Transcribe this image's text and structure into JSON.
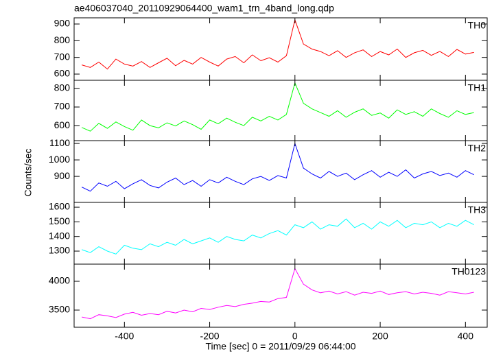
{
  "chart_data": [
    {
      "type": "line",
      "title": "ae406037040_20110929064400_wam1_trn_4band_long.qdp",
      "x": [
        -500,
        -480,
        -460,
        -440,
        -420,
        -400,
        -380,
        -360,
        -340,
        -320,
        -300,
        -280,
        -260,
        -240,
        -220,
        -200,
        -180,
        -160,
        -140,
        -120,
        -100,
        -80,
        -60,
        -40,
        -20,
        0,
        20,
        40,
        60,
        80,
        100,
        120,
        140,
        160,
        180,
        200,
        220,
        240,
        260,
        280,
        300,
        320,
        340,
        360,
        380,
        400,
        420
      ],
      "series": [
        {
          "name": "TH0",
          "color": "#ff0000",
          "values": [
            655,
            640,
            672,
            630,
            690,
            660,
            648,
            675,
            640,
            668,
            695,
            650,
            682,
            660,
            700,
            672,
            648,
            690,
            705,
            668,
            715,
            680,
            698,
            672,
            710,
            925,
            780,
            750,
            735,
            710,
            740,
            700,
            728,
            745,
            705,
            735,
            715,
            750,
            700,
            728,
            742,
            712,
            736,
            705,
            748,
            720,
            730
          ]
        }
      ],
      "xlim": [
        -518,
        451
      ],
      "xticks": [
        -400,
        -200,
        0,
        200,
        400
      ],
      "ylim": [
        563,
        937
      ],
      "yticks": [
        600,
        700,
        800,
        900
      ]
    },
    {
      "type": "line",
      "x": [
        -500,
        -480,
        -460,
        -440,
        -420,
        -400,
        -380,
        -360,
        -340,
        -320,
        -300,
        -280,
        -260,
        -240,
        -220,
        -200,
        -180,
        -160,
        -140,
        -120,
        -100,
        -80,
        -60,
        -40,
        -20,
        0,
        20,
        40,
        60,
        80,
        100,
        120,
        140,
        160,
        180,
        200,
        220,
        240,
        260,
        280,
        300,
        320,
        340,
        360,
        380,
        400,
        420
      ],
      "series": [
        {
          "name": "TH1",
          "color": "#00ff00",
          "values": [
            590,
            570,
            612,
            585,
            620,
            595,
            575,
            630,
            600,
            588,
            615,
            598,
            625,
            605,
            580,
            630,
            610,
            640,
            618,
            600,
            645,
            625,
            650,
            630,
            660,
            830,
            720,
            690,
            670,
            650,
            680,
            645,
            672,
            690,
            655,
            668,
            640,
            685,
            660,
            675,
            650,
            690,
            665,
            645,
            680,
            660,
            670
          ]
        }
      ],
      "xlim": [
        -518,
        451
      ],
      "xticks": [
        -400,
        -200,
        0,
        200,
        400
      ],
      "ylim": [
        519,
        844
      ],
      "yticks": [
        600,
        700,
        800
      ]
    },
    {
      "type": "line",
      "y_label": "Counts/sec",
      "x": [
        -500,
        -480,
        -460,
        -440,
        -420,
        -400,
        -380,
        -360,
        -340,
        -320,
        -300,
        -280,
        -260,
        -240,
        -220,
        -200,
        -180,
        -160,
        -140,
        -120,
        -100,
        -80,
        -60,
        -40,
        -20,
        0,
        20,
        40,
        60,
        80,
        100,
        120,
        140,
        160,
        180,
        200,
        220,
        240,
        260,
        280,
        300,
        320,
        340,
        360,
        380,
        400,
        420
      ],
      "series": [
        {
          "name": "TH2",
          "color": "#0000ff",
          "values": [
            835,
            810,
            860,
            840,
            870,
            825,
            855,
            880,
            845,
            830,
            865,
            890,
            850,
            875,
            840,
            880,
            860,
            895,
            870,
            850,
            885,
            900,
            875,
            905,
            890,
            1100,
            950,
            915,
            890,
            930,
            900,
            920,
            880,
            910,
            935,
            895,
            925,
            900,
            940,
            890,
            915,
            930,
            905,
            920,
            895,
            935,
            910
          ]
        }
      ],
      "xlim": [
        -518,
        451
      ],
      "xticks": [
        -400,
        -200,
        0,
        200,
        400
      ],
      "ylim": [
        742,
        1117
      ],
      "yticks": [
        900,
        1000,
        1100
      ]
    },
    {
      "type": "line",
      "x": [
        -500,
        -480,
        -460,
        -440,
        -420,
        -400,
        -380,
        -360,
        -340,
        -320,
        -300,
        -280,
        -260,
        -240,
        -220,
        -200,
        -180,
        -160,
        -140,
        -120,
        -100,
        -80,
        -60,
        -40,
        -20,
        0,
        20,
        40,
        60,
        80,
        100,
        120,
        140,
        160,
        180,
        200,
        220,
        240,
        260,
        280,
        300,
        320,
        340,
        360,
        380,
        400,
        420
      ],
      "series": [
        {
          "name": "TH3",
          "color": "#00ffff",
          "values": [
            1310,
            1290,
            1330,
            1300,
            1280,
            1340,
            1320,
            1310,
            1350,
            1330,
            1360,
            1340,
            1380,
            1350,
            1370,
            1390,
            1360,
            1400,
            1380,
            1370,
            1410,
            1390,
            1420,
            1440,
            1410,
            1480,
            1460,
            1500,
            1450,
            1480,
            1470,
            1520,
            1460,
            1490,
            1450,
            1500,
            1470,
            1510,
            1460,
            1490,
            1480,
            1500,
            1460,
            1490,
            1470,
            1510,
            1480
          ]
        }
      ],
      "xlim": [
        -518,
        451
      ],
      "xticks": [
        -400,
        -200,
        0,
        200,
        400
      ],
      "ylim": [
        1211,
        1633
      ],
      "yticks": [
        1300,
        1400,
        1500,
        1600
      ]
    },
    {
      "type": "line",
      "x_label": "Time [sec] 0 = 2011/09/29 06:44:00",
      "x": [
        -500,
        -480,
        -460,
        -440,
        -420,
        -400,
        -380,
        -360,
        -340,
        -320,
        -300,
        -280,
        -260,
        -240,
        -220,
        -200,
        -180,
        -160,
        -140,
        -120,
        -100,
        -80,
        -60,
        -40,
        -20,
        0,
        20,
        40,
        60,
        80,
        100,
        120,
        140,
        160,
        180,
        200,
        220,
        240,
        260,
        280,
        300,
        320,
        340,
        360,
        380,
        400,
        420
      ],
      "series": [
        {
          "name": "TH0123",
          "color": "#ff00ff",
          "values": [
            3380,
            3350,
            3420,
            3400,
            3370,
            3430,
            3460,
            3410,
            3440,
            3420,
            3480,
            3450,
            3500,
            3470,
            3530,
            3510,
            3550,
            3580,
            3560,
            3600,
            3620,
            3650,
            3640,
            3700,
            3720,
            4220,
            3950,
            3850,
            3800,
            3830,
            3780,
            3820,
            3760,
            3810,
            3790,
            3830,
            3770,
            3800,
            3820,
            3780,
            3810,
            3790,
            3760,
            3820,
            3800,
            3780,
            3810
          ]
        }
      ],
      "xlim": [
        -518,
        451
      ],
      "xticks": [
        -400,
        -200,
        0,
        200,
        400
      ],
      "ylim": [
        3202,
        4298
      ],
      "yticks": [
        3500,
        4000
      ]
    }
  ]
}
